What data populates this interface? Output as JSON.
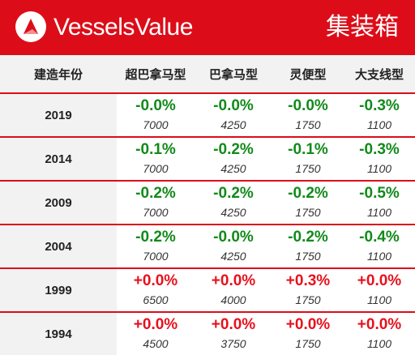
{
  "header": {
    "brand": "VesselsValue",
    "segment": "集装箱",
    "brand_color": "#dc0d19",
    "logo_icon": "vesselsvalue-logo-icon"
  },
  "table": {
    "columns": [
      "建造年份",
      "超巴拿马型",
      "巴拿马型",
      "灵便型",
      "大支线型"
    ],
    "rows": [
      {
        "year": "2019",
        "cells": [
          {
            "change": "-0.0%",
            "value": "7000",
            "direction": "neg"
          },
          {
            "change": "-0.0%",
            "value": "4250",
            "direction": "neg"
          },
          {
            "change": "-0.0%",
            "value": "1750",
            "direction": "neg"
          },
          {
            "change": "-0.3%",
            "value": "1100",
            "direction": "neg"
          }
        ]
      },
      {
        "year": "2014",
        "cells": [
          {
            "change": "-0.1%",
            "value": "7000",
            "direction": "neg"
          },
          {
            "change": "-0.2%",
            "value": "4250",
            "direction": "neg"
          },
          {
            "change": "-0.1%",
            "value": "1750",
            "direction": "neg"
          },
          {
            "change": "-0.3%",
            "value": "1100",
            "direction": "neg"
          }
        ]
      },
      {
        "year": "2009",
        "cells": [
          {
            "change": "-0.2%",
            "value": "7000",
            "direction": "neg"
          },
          {
            "change": "-0.2%",
            "value": "4250",
            "direction": "neg"
          },
          {
            "change": "-0.2%",
            "value": "1750",
            "direction": "neg"
          },
          {
            "change": "-0.5%",
            "value": "1100",
            "direction": "neg"
          }
        ]
      },
      {
        "year": "2004",
        "cells": [
          {
            "change": "-0.2%",
            "value": "7000",
            "direction": "neg"
          },
          {
            "change": "-0.0%",
            "value": "4250",
            "direction": "neg"
          },
          {
            "change": "-0.2%",
            "value": "1750",
            "direction": "neg"
          },
          {
            "change": "-0.4%",
            "value": "1100",
            "direction": "neg"
          }
        ]
      },
      {
        "year": "1999",
        "cells": [
          {
            "change": "+0.0%",
            "value": "6500",
            "direction": "pos"
          },
          {
            "change": "+0.0%",
            "value": "4000",
            "direction": "pos"
          },
          {
            "change": "+0.3%",
            "value": "1750",
            "direction": "pos"
          },
          {
            "change": "+0.0%",
            "value": "1100",
            "direction": "pos"
          }
        ]
      },
      {
        "year": "1994",
        "cells": [
          {
            "change": "+0.0%",
            "value": "4500",
            "direction": "pos"
          },
          {
            "change": "+0.0%",
            "value": "3750",
            "direction": "pos"
          },
          {
            "change": "+0.0%",
            "value": "1750",
            "direction": "pos"
          },
          {
            "change": "+0.0%",
            "value": "1100",
            "direction": "pos"
          }
        ]
      }
    ]
  },
  "colors": {
    "negative": "#118a1a",
    "positive": "#e8101d",
    "divider": "#dc0d19"
  }
}
